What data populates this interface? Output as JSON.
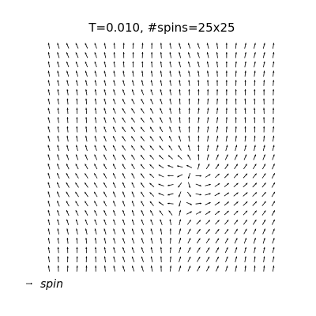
{
  "chart_data": {
    "type": "quiver",
    "title": "T=0.010, #spins=25x25",
    "xlabel": "",
    "ylabel": "",
    "grid": false,
    "axes_visible": false,
    "lattice": {
      "nx": 25,
      "ny": 25,
      "x_range": [
        0,
        24
      ],
      "y_range": [
        0,
        24
      ]
    },
    "vector_field": {
      "description_of_source": "angle field of a 2D XY spin lattice at low temperature",
      "vortices": [
        {
          "x": 15.5,
          "y": 10.5,
          "charge": 1
        },
        {
          "x": 14.0,
          "y": 6.5,
          "charge": -1
        }
      ],
      "background_angle_deg": 90
    },
    "legend": {
      "placement": "bottom-left",
      "entries": [
        {
          "label": "spin",
          "marker": "arrow"
        }
      ]
    },
    "colors": {
      "arrow": "#000000",
      "background": "#ffffff"
    }
  }
}
